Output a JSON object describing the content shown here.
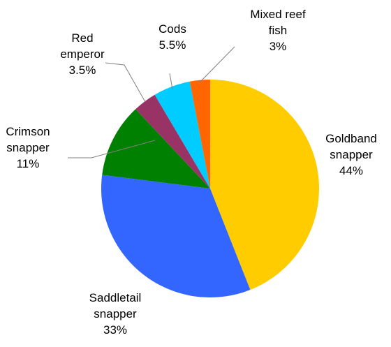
{
  "chart_data": {
    "type": "pie",
    "title": "",
    "start_angle_deg": 0,
    "direction": "clockwise",
    "slices": [
      {
        "label_lines": [
          "Goldband",
          "snapper"
        ],
        "value": 44,
        "value_label": "44%",
        "color": "#FFCC00"
      },
      {
        "label_lines": [
          "Saddletail",
          "snapper"
        ],
        "value": 33,
        "value_label": "33%",
        "color": "#3366FF"
      },
      {
        "label_lines": [
          "Crimson",
          "snapper"
        ],
        "value": 11,
        "value_label": "11%",
        "color": "#008000"
      },
      {
        "label_lines": [
          "Red",
          "emperor"
        ],
        "value": 3.5,
        "value_label": "3.5%",
        "color": "#993366"
      },
      {
        "label_lines": [
          "Cods"
        ],
        "value": 5.5,
        "value_label": "5.5%",
        "color": "#00CCFF"
      },
      {
        "label_lines": [
          "Mixed reef",
          "fish"
        ],
        "value": 3,
        "value_label": "3%",
        "color": "#FF6600"
      }
    ]
  }
}
